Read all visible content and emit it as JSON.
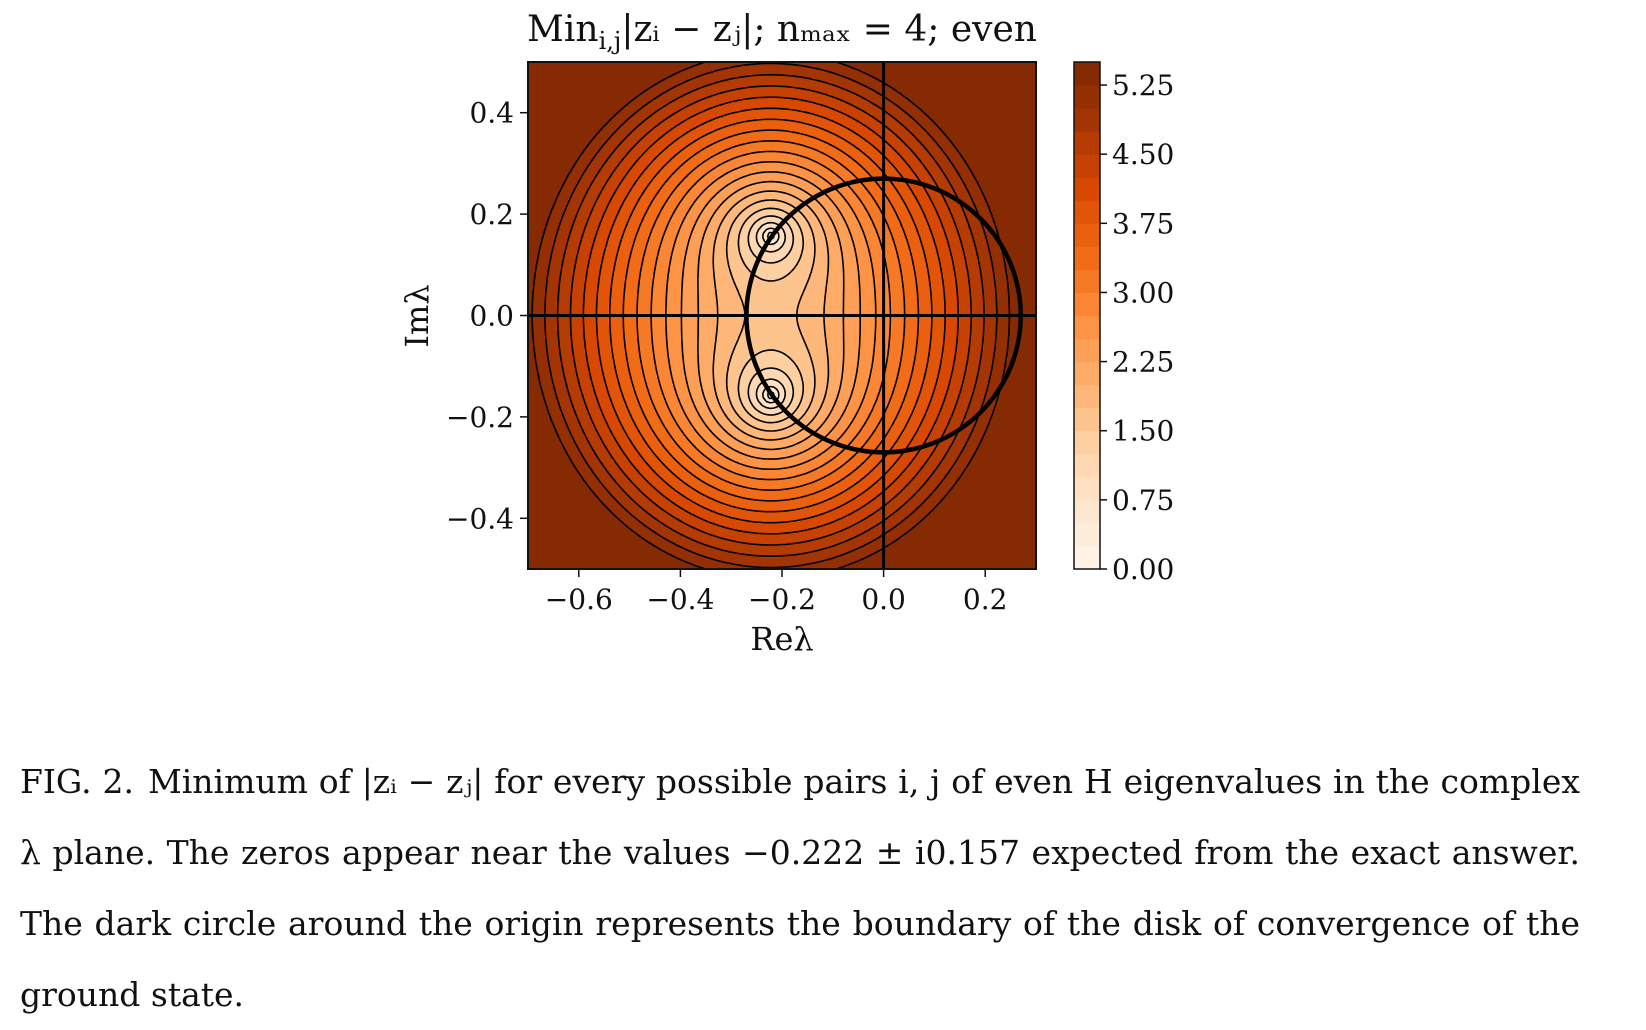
{
  "figure": {
    "title_main": "Min",
    "title_sub": "i,j",
    "title_rest": "|zᵢ − zⱼ|; nₘₐₓ = 4; even",
    "xlabel": "Reλ",
    "ylabel": "Imλ",
    "x_ticks": [
      "−0.6",
      "−0.4",
      "−0.2",
      "0.0",
      "0.2"
    ],
    "y_ticks": [
      "0.4",
      "0.2",
      "0.0",
      "−0.2",
      "−0.4"
    ],
    "colorbar_ticks": [
      "5.25",
      "4.50",
      "3.75",
      "3.00",
      "2.25",
      "1.50",
      "0.75",
      "0.00"
    ]
  },
  "chart_data": {
    "type": "heatmap",
    "title": "Min_{i,j}|z_i − z_j|; n_max = 4; even",
    "xlabel": "Reλ",
    "ylabel": "Imλ",
    "xlim": [
      -0.7,
      0.3
    ],
    "ylim": [
      -0.5,
      0.5
    ],
    "x_tick_values": [
      -0.6,
      -0.4,
      -0.2,
      0.0,
      0.2
    ],
    "y_tick_values": [
      0.4,
      0.2,
      0.0,
      -0.2,
      -0.4
    ],
    "colorbar": {
      "min": 0.0,
      "max": 5.5,
      "levels": 22,
      "ticks": [
        0.0,
        0.75,
        1.5,
        2.25,
        3.0,
        3.75,
        4.5,
        5.25
      ],
      "colormap": "Oranges"
    },
    "zeros": [
      {
        "re": -0.222,
        "im": 0.157
      },
      {
        "re": -0.222,
        "im": -0.157
      }
    ],
    "convergence_circle": {
      "center_re": 0.0,
      "center_im": 0.0,
      "radius": 0.27
    },
    "reference_lines": {
      "re": 0.0,
      "im": 0.0
    },
    "contours": "black"
  },
  "colors": {
    "colormap_low": "#fff5eb",
    "colormap_high": "#7f2704",
    "contour": "#000000"
  },
  "caption": {
    "label": "FIG. 2.",
    "text": "Minimum of |zᵢ − zⱼ| for every possible pairs i, j of even H eigenvalues in the complex λ plane. The zeros appear near the values −0.222 ± i0.157 expected from the exact answer. The dark circle around the origin represents the boundary of the disk of convergence of the ground state."
  }
}
